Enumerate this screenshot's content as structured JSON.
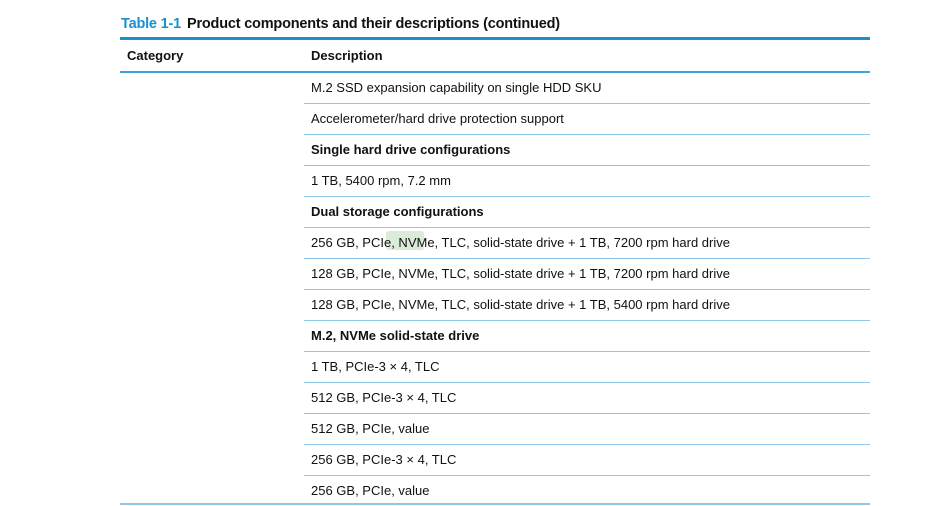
{
  "caption": {
    "number": "Table 1-1",
    "title": "Product components and their descriptions (continued)"
  },
  "headers": {
    "category": "Category",
    "description": "Description"
  },
  "rows": [
    {
      "text": "M.2 SSD expansion capability on single HDD SKU",
      "bold": false
    },
    {
      "text": "Accelerometer/hard drive protection support",
      "bold": false
    },
    {
      "text": "Single hard drive configurations",
      "bold": true
    },
    {
      "text": "1 TB, 5400 rpm, 7.2 mm",
      "bold": false
    },
    {
      "text": "Dual storage configurations",
      "bold": true
    },
    {
      "text": "256 GB, PCIe, NVMe, TLC, solid-state drive + 1 TB, 7200 rpm hard drive",
      "bold": false
    },
    {
      "text": "128 GB, PCIe, NVMe, TLC, solid-state drive + 1 TB, 7200 rpm hard drive",
      "bold": false
    },
    {
      "text": "128 GB, PCIe, NVMe, TLC, solid-state drive + 1 TB, 5400 rpm hard drive",
      "bold": false
    },
    {
      "text": "M.2, NVMe solid-state drive",
      "bold": true
    },
    {
      "text": "1 TB, PCIe-3 × 4, TLC",
      "bold": false
    },
    {
      "text": "512 GB, PCIe-3 × 4, TLC",
      "bold": false
    },
    {
      "text": "512 GB, PCIe, value",
      "bold": false
    },
    {
      "text": "256 GB, PCIe-3 × 4, TLC",
      "bold": false
    },
    {
      "text": "256 GB, PCIe, value",
      "bold": false
    }
  ],
  "colors": {
    "accent": "#1a8fd1",
    "rule": "#8cc8e8",
    "highlight": "#cfe6cf"
  }
}
